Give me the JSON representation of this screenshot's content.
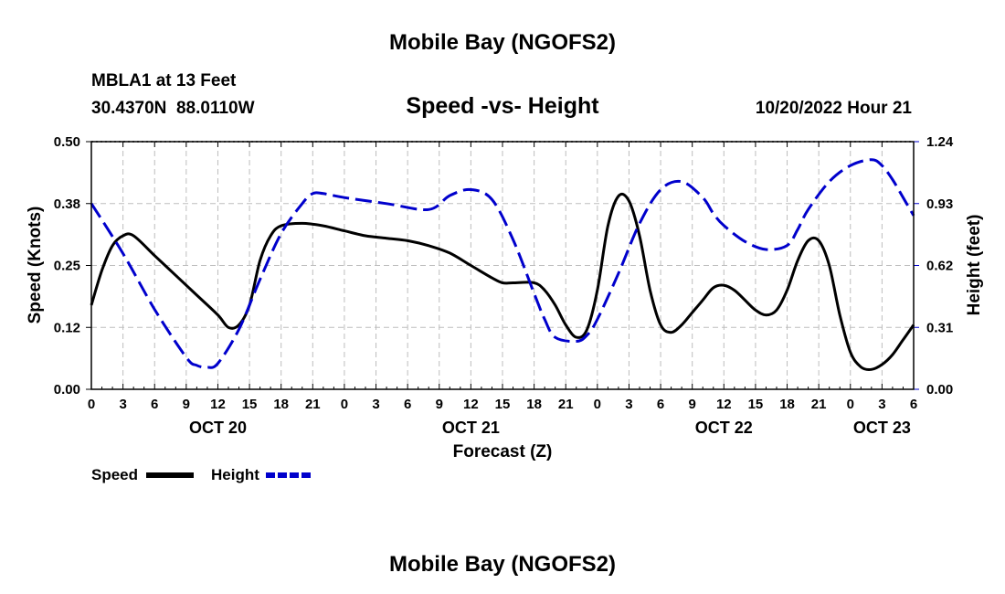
{
  "page": {
    "title_top": "Mobile Bay (NGOFS2)",
    "title_bottom": "Mobile Bay (NGOFS2)",
    "station": "MBLA1 at 13 Feet",
    "coords": "30.4370N  88.0110W",
    "subtitle": "Speed -vs- Height",
    "date": "10/20/2022 Hour 21"
  },
  "chart_data": {
    "type": "line",
    "title": "Speed -vs- Height",
    "xlabel": "Forecast (Z)",
    "ylabel": "Speed (Knots)",
    "y2label": "Height (feet)",
    "x_unit": "hours since 2022-10-20 00Z",
    "xlim": [
      0,
      78
    ],
    "ylim": [
      0,
      0.5
    ],
    "y2lim": [
      0,
      1.24
    ],
    "grid": true,
    "legend_position": "bottom-left",
    "x_tick_labels": [
      "0",
      "3",
      "6",
      "9",
      "12",
      "15",
      "18",
      "21",
      "0",
      "3",
      "6",
      "9",
      "12",
      "15",
      "18",
      "21",
      "0",
      "3",
      "6",
      "9",
      "12",
      "15",
      "18",
      "21",
      "0",
      "3",
      "6"
    ],
    "y_tick_labels": [
      "0.00",
      "0.12",
      "0.25",
      "0.38",
      "0.50"
    ],
    "y2_tick_labels": [
      "0.00",
      "0.31",
      "0.62",
      "0.93",
      "1.24"
    ],
    "date_labels": [
      {
        "x": 12,
        "label": "OCT 20"
      },
      {
        "x": 36,
        "label": "OCT 21"
      },
      {
        "x": 60,
        "label": "OCT 22"
      },
      {
        "x": 75,
        "label": "OCT 23"
      }
    ],
    "series": [
      {
        "name": "Speed",
        "axis": "left",
        "color": "#000000",
        "dash": "solid",
        "x": [
          0,
          1,
          2,
          3,
          4,
          6,
          8,
          10,
          12,
          13,
          14,
          15,
          16,
          17,
          18,
          20,
          22,
          24,
          26,
          28,
          30,
          32,
          34,
          36,
          38,
          39,
          40,
          42,
          43,
          44,
          45,
          46,
          47,
          48,
          49,
          50,
          51,
          52,
          53,
          54,
          55,
          56,
          57,
          58,
          59,
          60,
          61,
          62,
          63,
          64,
          65,
          66,
          67,
          68,
          69,
          70,
          71,
          72,
          73,
          74,
          75,
          76,
          77,
          78
        ],
        "values": [
          0.17,
          0.24,
          0.29,
          0.31,
          0.31,
          0.27,
          0.23,
          0.19,
          0.15,
          0.125,
          0.13,
          0.17,
          0.26,
          0.31,
          0.33,
          0.335,
          0.33,
          0.32,
          0.31,
          0.305,
          0.3,
          0.29,
          0.275,
          0.25,
          0.225,
          0.215,
          0.215,
          0.215,
          0.2,
          0.17,
          0.13,
          0.105,
          0.12,
          0.2,
          0.33,
          0.39,
          0.38,
          0.31,
          0.2,
          0.13,
          0.115,
          0.13,
          0.155,
          0.18,
          0.205,
          0.21,
          0.2,
          0.18,
          0.16,
          0.15,
          0.16,
          0.2,
          0.26,
          0.3,
          0.3,
          0.25,
          0.15,
          0.075,
          0.045,
          0.04,
          0.05,
          0.07,
          0.1,
          0.13
        ]
      },
      {
        "name": "Height",
        "axis": "right",
        "color": "#0000cc",
        "dash": "dashed",
        "x": [
          0,
          3,
          6,
          9,
          10,
          11,
          12,
          14,
          16,
          18,
          20,
          21,
          22,
          24,
          28,
          32,
          34,
          36,
          38,
          40,
          42,
          43,
          44,
          46,
          47,
          48,
          50,
          52,
          54,
          56,
          58,
          59,
          60,
          62,
          64,
          66,
          67,
          68,
          70,
          72,
          74,
          75,
          76,
          77,
          78
        ],
        "values": [
          0.93,
          0.68,
          0.4,
          0.16,
          0.12,
          0.11,
          0.13,
          0.3,
          0.55,
          0.78,
          0.93,
          0.98,
          0.98,
          0.96,
          0.93,
          0.9,
          0.97,
          1.0,
          0.95,
          0.75,
          0.48,
          0.35,
          0.26,
          0.24,
          0.27,
          0.35,
          0.58,
          0.83,
          1.0,
          1.04,
          0.96,
          0.88,
          0.82,
          0.74,
          0.7,
          0.72,
          0.8,
          0.9,
          1.04,
          1.12,
          1.15,
          1.12,
          1.05,
          0.96,
          0.87
        ]
      }
    ]
  }
}
